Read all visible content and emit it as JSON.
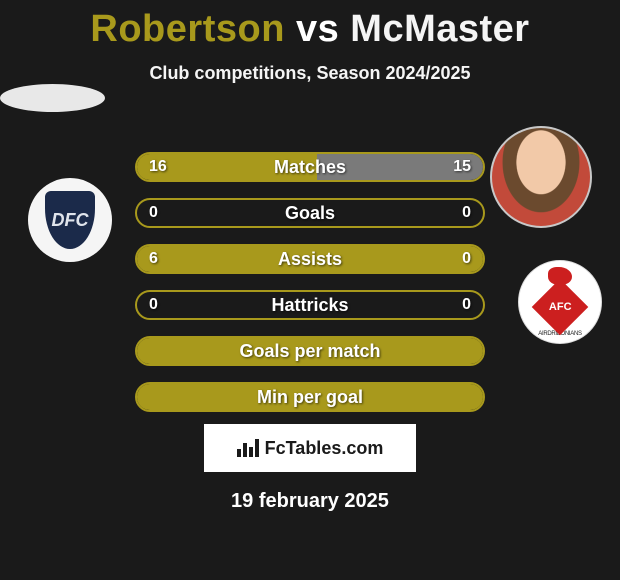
{
  "title_left": "Robertson",
  "title_vs": " vs ",
  "title_right": "McMaster",
  "title_left_color": "#a8991c",
  "title_right_color": "#f5f5f5",
  "subtitle": "Club competitions, Season 2024/2025",
  "bars": [
    {
      "label": "Matches",
      "left": "16",
      "right": "15",
      "left_pct": 52,
      "right_pct": 48,
      "left_color": "#a8991c",
      "right_color": "#7a7a7a",
      "border_color": "#a8991c"
    },
    {
      "label": "Goals",
      "left": "0",
      "right": "0",
      "left_pct": 0,
      "right_pct": 0,
      "left_color": "#a8991c",
      "right_color": "#7a7a7a",
      "border_color": "#a8991c"
    },
    {
      "label": "Assists",
      "left": "6",
      "right": "0",
      "left_pct": 100,
      "right_pct": 0,
      "left_color": "#a8991c",
      "right_color": "#7a7a7a",
      "border_color": "#a8991c"
    },
    {
      "label": "Hattricks",
      "left": "0",
      "right": "0",
      "left_pct": 0,
      "right_pct": 0,
      "left_color": "#a8991c",
      "right_color": "#7a7a7a",
      "border_color": "#a8991c"
    },
    {
      "label": "Goals per match",
      "left": "",
      "right": "",
      "left_pct": 100,
      "right_pct": 0,
      "left_color": "#a8991c",
      "right_color": "#7a7a7a",
      "border_color": "#a8991c"
    },
    {
      "label": "Min per goal",
      "left": "",
      "right": "",
      "left_pct": 100,
      "right_pct": 0,
      "left_color": "#a8991c",
      "right_color": "#7a7a7a",
      "border_color": "#a8991c"
    }
  ],
  "attribution_text": "FcTables.com",
  "date_text": "19 february 2025",
  "crest_left_text": "DFC",
  "crest_right_text": "AFC",
  "crest_right_banner": "AIRDRIEONIANS",
  "background_color": "#1a1a1a"
}
